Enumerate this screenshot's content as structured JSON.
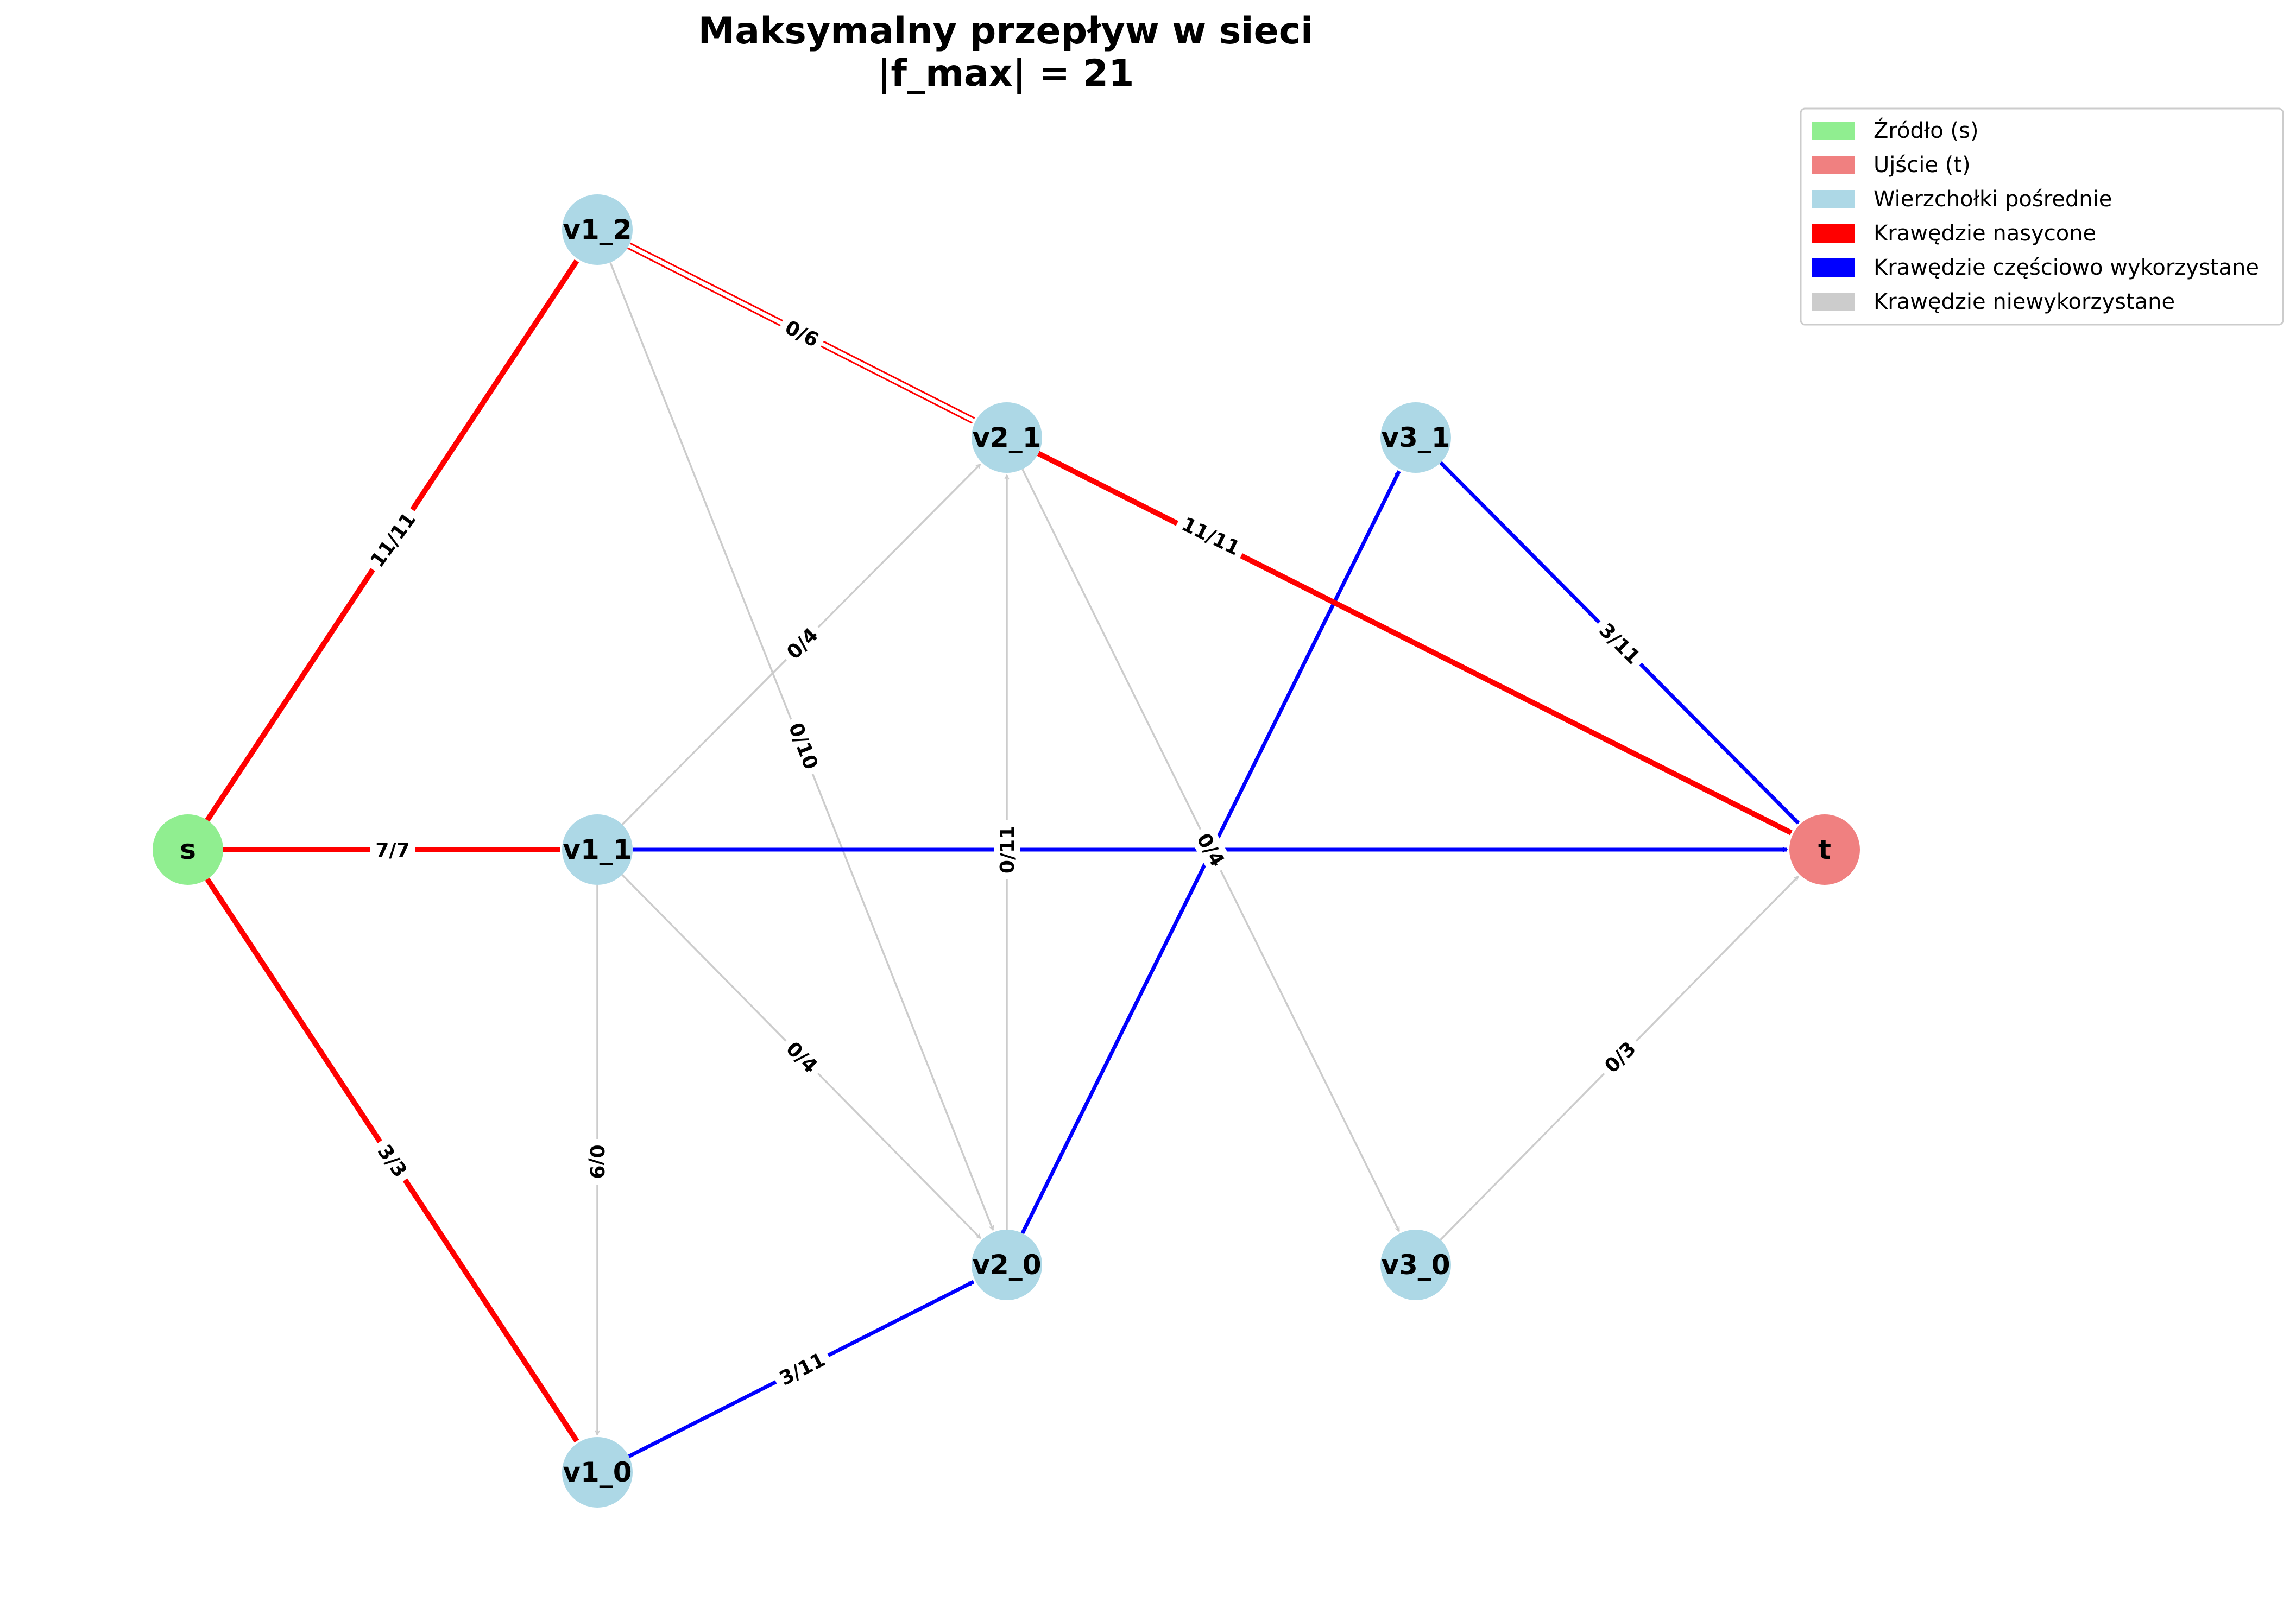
{
  "title": {
    "line1": "Maksymalny przepływ w sieci",
    "line2": "|f_max| = 21"
  },
  "colors": {
    "source": "#90ee90",
    "sink": "#f08080",
    "intermediate": "#add8e6",
    "saturated": "#ff0000",
    "partial": "#0000ff",
    "unused": "#cccccc"
  },
  "nodes": [
    {
      "id": "s",
      "label": "s",
      "role": "source"
    },
    {
      "id": "v1_0",
      "label": "v1_0",
      "role": "intermediate"
    },
    {
      "id": "v1_1",
      "label": "v1_1",
      "role": "intermediate"
    },
    {
      "id": "v1_2",
      "label": "v1_2",
      "role": "intermediate"
    },
    {
      "id": "v2_0",
      "label": "v2_0",
      "role": "intermediate"
    },
    {
      "id": "v2_1",
      "label": "v2_1",
      "role": "intermediate"
    },
    {
      "id": "v3_0",
      "label": "v3_0",
      "role": "intermediate"
    },
    {
      "id": "v3_1",
      "label": "v3_1",
      "role": "intermediate"
    },
    {
      "id": "t",
      "label": "t",
      "role": "sink"
    }
  ],
  "edges": [
    {
      "from": "v1_2",
      "to": "v2_0",
      "label": "0/10",
      "state": "unused"
    },
    {
      "from": "v1_1",
      "to": "v2_1",
      "label": "0/4",
      "state": "unused"
    },
    {
      "from": "v1_1",
      "to": "v2_0",
      "label": "0/4",
      "state": "unused"
    },
    {
      "from": "v1_1",
      "to": "v1_0",
      "label": "0/9",
      "state": "unused"
    },
    {
      "from": "v2_0",
      "to": "v2_1",
      "label": "0/11",
      "state": "unused"
    },
    {
      "from": "v2_1",
      "to": "v3_0",
      "label": "0/4",
      "state": "unused"
    },
    {
      "from": "v3_0",
      "to": "t",
      "label": "0/3",
      "state": "unused"
    },
    {
      "from": "v1_2",
      "to": "v2_1",
      "label": "0/6",
      "state": "saturated-double"
    },
    {
      "from": "v1_1",
      "to": "t",
      "label": "",
      "state": "partial"
    },
    {
      "from": "v2_0",
      "to": "v3_1",
      "label": "",
      "state": "partial"
    },
    {
      "from": "v3_1",
      "to": "t",
      "label": "3/11",
      "state": "partial"
    },
    {
      "from": "v1_0",
      "to": "v2_0",
      "label": "3/11",
      "state": "partial"
    },
    {
      "from": "s",
      "to": "v1_2",
      "label": "11/11",
      "state": "saturated"
    },
    {
      "from": "s",
      "to": "v1_1",
      "label": "7/7",
      "state": "saturated"
    },
    {
      "from": "s",
      "to": "v1_0",
      "label": "3/3",
      "state": "saturated"
    },
    {
      "from": "v2_1",
      "to": "t",
      "label": "11/11",
      "state": "saturated"
    }
  ],
  "legend": [
    {
      "label": "Źródło (s)",
      "color": "#90ee90"
    },
    {
      "label": "Ujście (t)",
      "color": "#f08080"
    },
    {
      "label": "Wierzchołki pośrednie",
      "color": "#add8e6"
    },
    {
      "label": "Krawędzie nasycone",
      "color": "#ff0000"
    },
    {
      "label": "Krawędzie częściowo wykorzystane",
      "color": "#0000ff"
    },
    {
      "label": "Krawędzie niewykorzystane",
      "color": "#cccccc"
    }
  ]
}
